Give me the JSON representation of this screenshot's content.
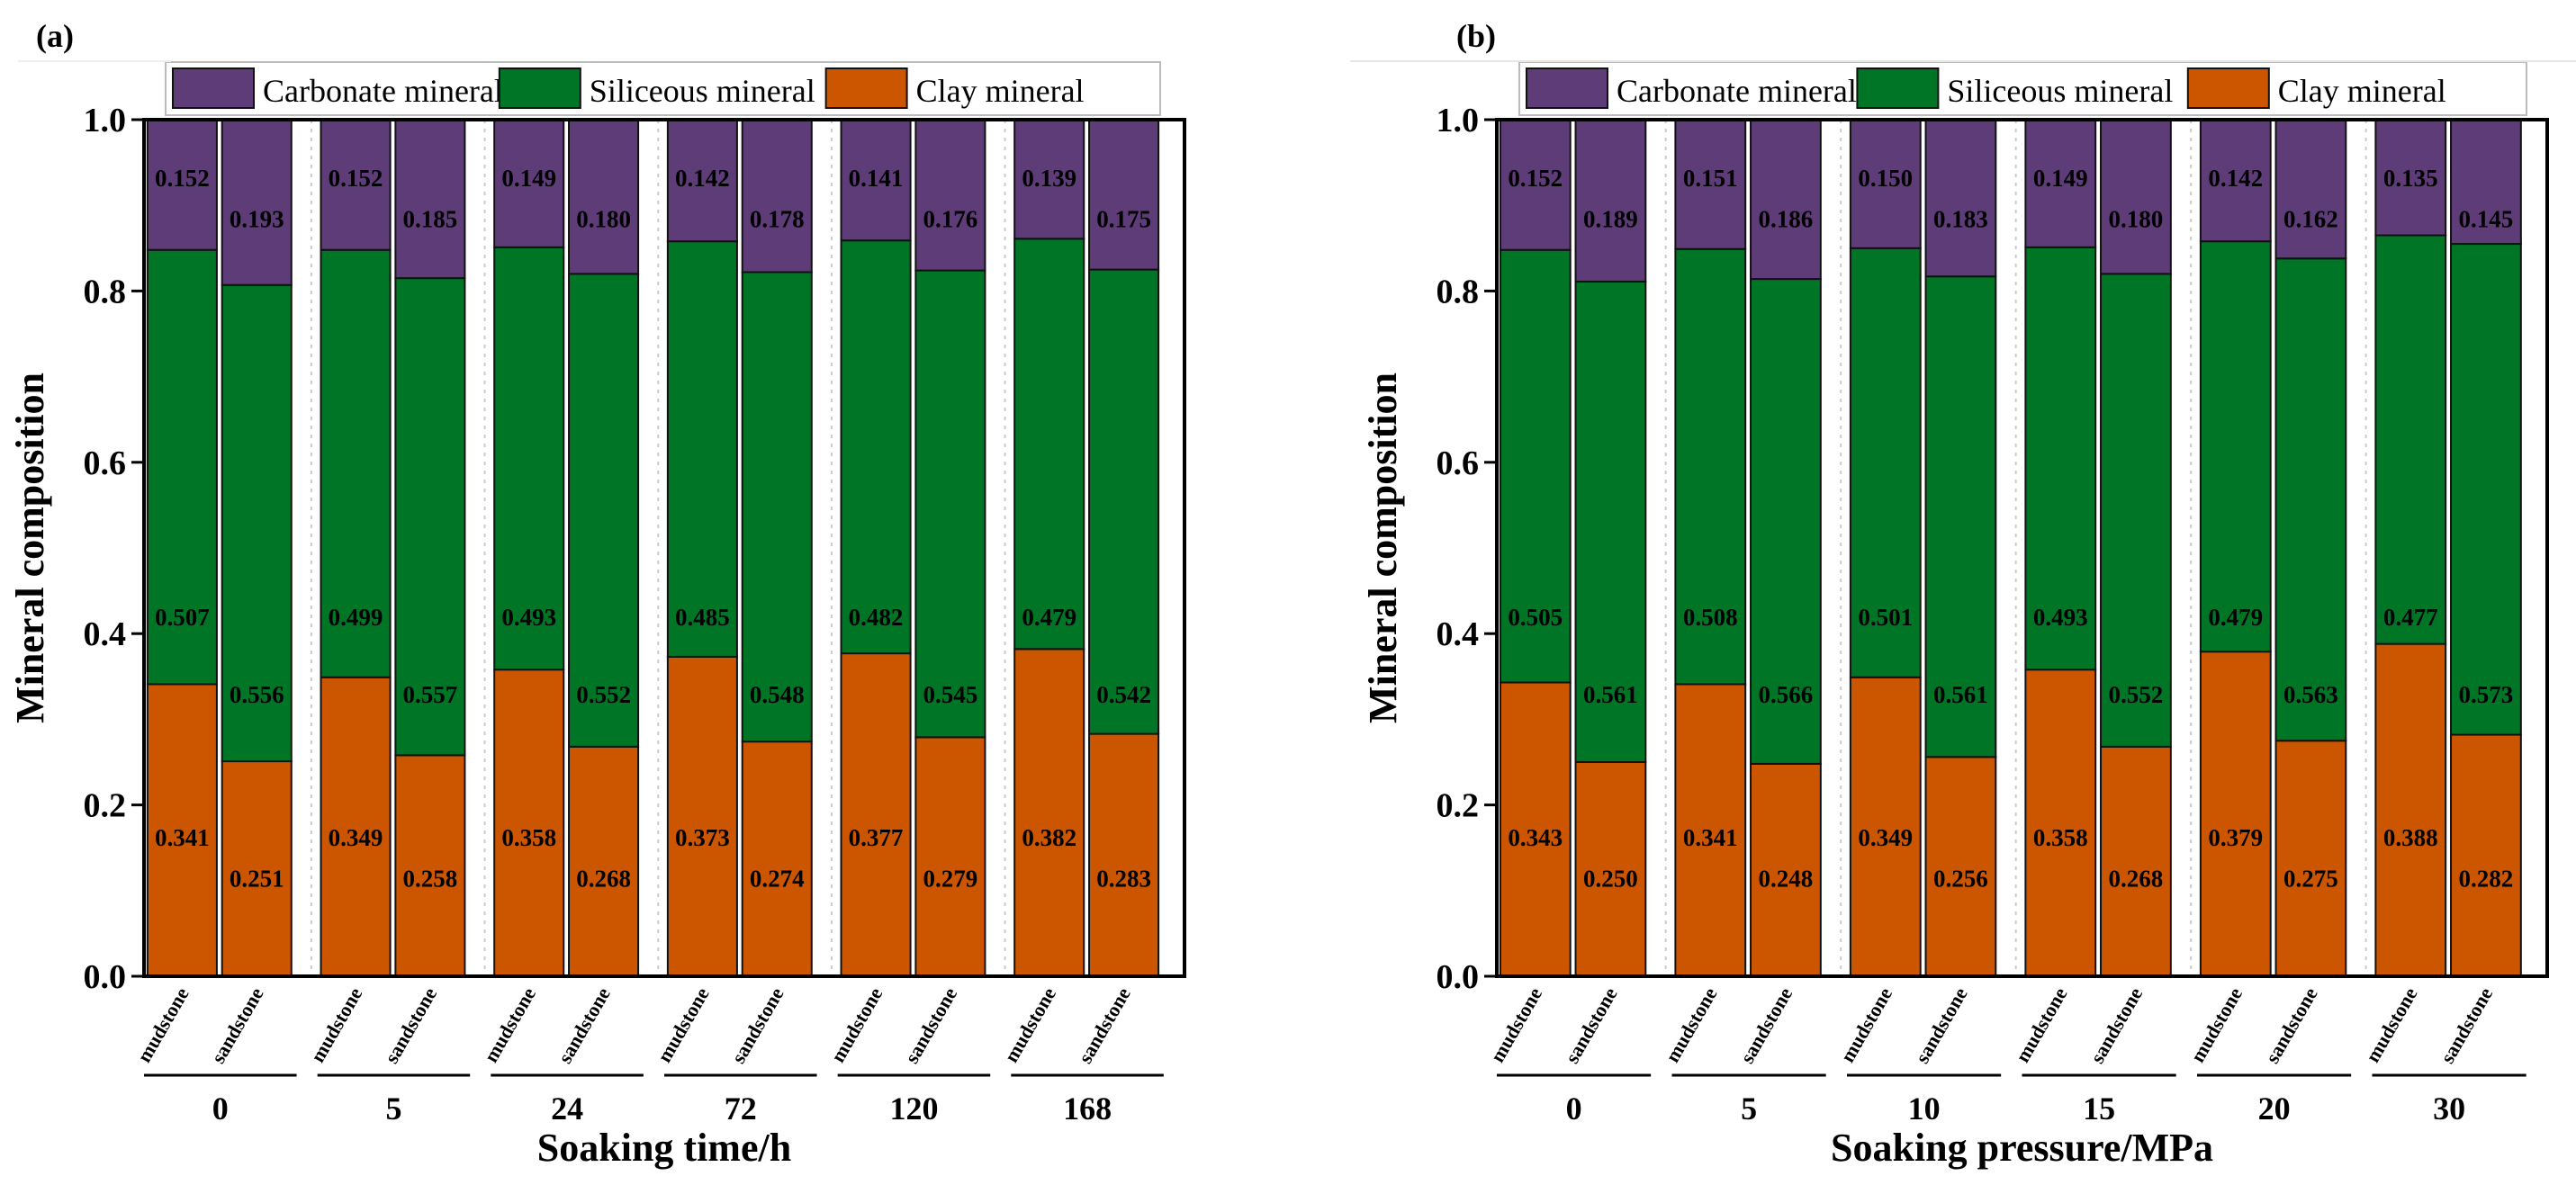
{
  "colors": {
    "carbonate": "#5e3c78",
    "siliceous": "#007526",
    "clay": "#cc5500"
  },
  "chart_data": [
    {
      "type": "bar",
      "stacked": true,
      "panel_label": "(a)",
      "xlabel": "Soaking time/h",
      "ylabel": "Mineral composition",
      "ylim": [
        0,
        1.0
      ],
      "yticks": [
        "0.0",
        "0.2",
        "0.4",
        "0.6",
        "0.8",
        "1.0"
      ],
      "legend": [
        "Carbonate mineral",
        "Siliceous mineral",
        "Clay mineral"
      ],
      "legend_position": "top",
      "groups": [
        "0",
        "5",
        "24",
        "72",
        "120",
        "168"
      ],
      "bar_labels": [
        "mudstone",
        "sandstone"
      ],
      "series": [
        {
          "name": "Clay mineral",
          "mudstone": [
            0.341,
            0.349,
            0.358,
            0.373,
            0.377,
            0.382
          ],
          "sandstone": [
            0.251,
            0.258,
            0.268,
            0.274,
            0.279,
            0.283
          ]
        },
        {
          "name": "Siliceous mineral",
          "mudstone": [
            0.507,
            0.499,
            0.493,
            0.485,
            0.482,
            0.479
          ],
          "sandstone": [
            0.556,
            0.557,
            0.552,
            0.548,
            0.545,
            0.542
          ]
        },
        {
          "name": "Carbonate mineral",
          "mudstone": [
            0.152,
            0.152,
            0.149,
            0.142,
            0.141,
            0.139
          ],
          "sandstone": [
            0.193,
            0.185,
            0.18,
            0.178,
            0.176,
            0.175
          ]
        }
      ]
    },
    {
      "type": "bar",
      "stacked": true,
      "panel_label": "(b)",
      "xlabel": "Soaking pressure/MPa",
      "ylabel": "Mineral composition",
      "ylim": [
        0,
        1.0
      ],
      "yticks": [
        "0.0",
        "0.2",
        "0.4",
        "0.6",
        "0.8",
        "1.0"
      ],
      "legend": [
        "Carbonate mineral",
        "Siliceous mineral",
        "Clay mineral"
      ],
      "legend_position": "top",
      "groups": [
        "0",
        "5",
        "10",
        "15",
        "20",
        "30"
      ],
      "bar_labels": [
        "mudstone",
        "sandstone"
      ],
      "series": [
        {
          "name": "Clay mineral",
          "mudstone": [
            0.343,
            0.341,
            0.349,
            0.358,
            0.379,
            0.388
          ],
          "sandstone": [
            0.25,
            0.248,
            0.256,
            0.268,
            0.275,
            0.282
          ]
        },
        {
          "name": "Siliceous mineral",
          "mudstone": [
            0.505,
            0.508,
            0.501,
            0.493,
            0.479,
            0.477
          ],
          "sandstone": [
            0.561,
            0.566,
            0.561,
            0.552,
            0.563,
            0.573
          ]
        },
        {
          "name": "Carbonate mineral",
          "mudstone": [
            0.152,
            0.151,
            0.15,
            0.149,
            0.142,
            0.135
          ],
          "sandstone": [
            0.189,
            0.186,
            0.183,
            0.18,
            0.162,
            0.145
          ]
        }
      ]
    }
  ]
}
